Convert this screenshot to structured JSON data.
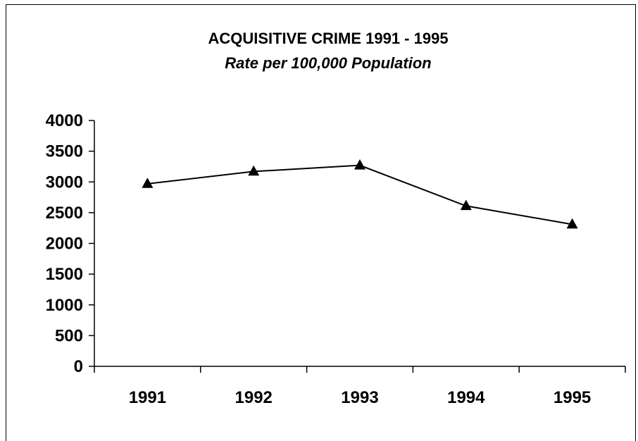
{
  "chart_data": {
    "type": "line",
    "title": "ACQUISITIVE CRIME 1991 - 1995",
    "subtitle": "Rate per 100,000 Population",
    "xlabel": "",
    "ylabel": "",
    "categories": [
      "1991",
      "1992",
      "1993",
      "1994",
      "1995"
    ],
    "series": [
      {
        "values": [
          2970,
          3170,
          3270,
          2610,
          2310
        ],
        "marker": "triangle",
        "color": "#000000"
      }
    ],
    "ylim": [
      0,
      4000
    ],
    "yticks": [
      "0",
      "500",
      "1000",
      "1500",
      "2000",
      "2500",
      "3000",
      "3500",
      "4000"
    ],
    "grid": false,
    "legend": "none"
  }
}
